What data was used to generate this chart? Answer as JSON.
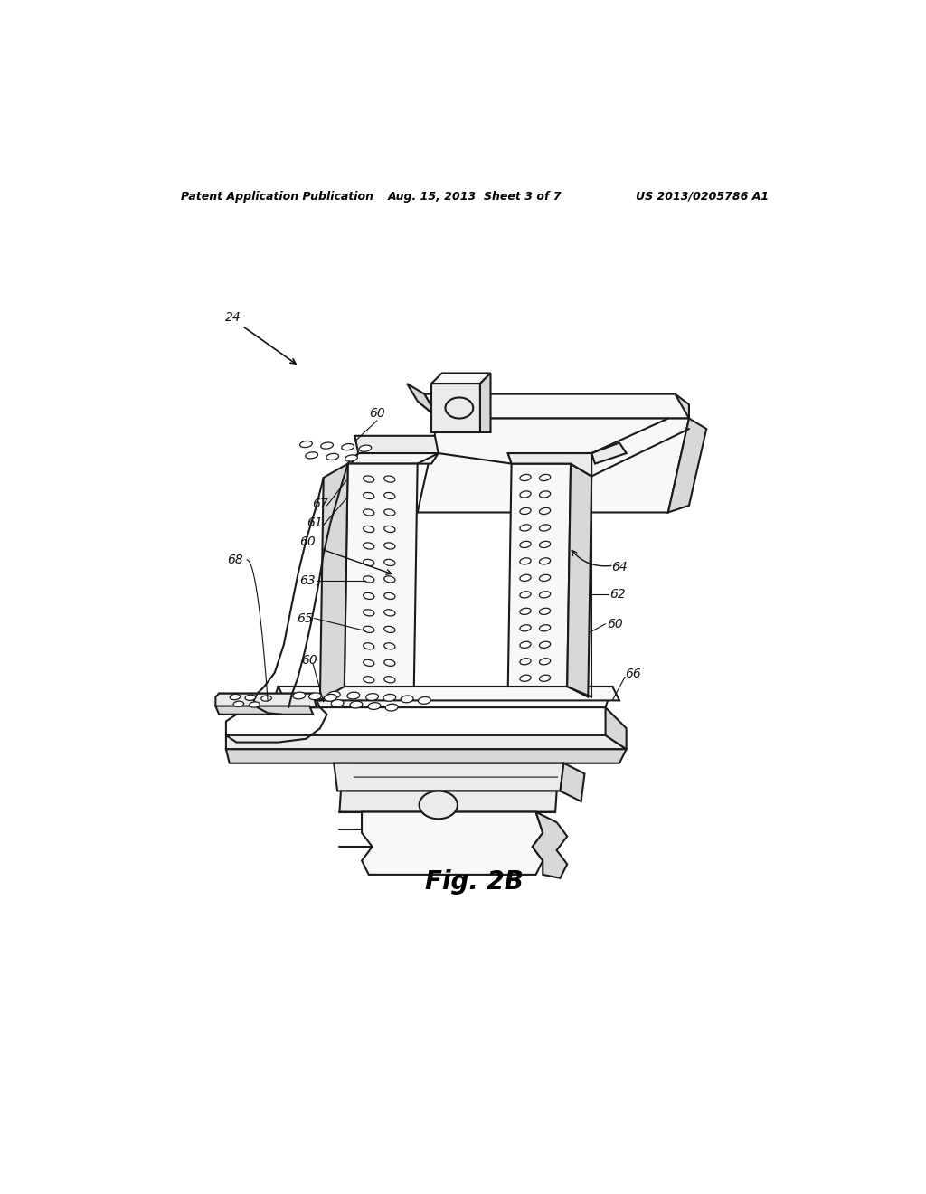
{
  "background_color": "#ffffff",
  "header_left": "Patent Application Publication",
  "header_center": "Aug. 15, 2013  Sheet 3 of 7",
  "header_right": "US 2013/0205786 A1",
  "figure_label": "Fig. 2B",
  "lw_main": 1.5,
  "lw_thin": 0.8,
  "color_edge": "#1a1a1a",
  "color_leader": "#111111",
  "face_light": "#f8f8f8",
  "face_mid": "#ebebeb",
  "face_dark": "#d8d8d8",
  "face_darker": "#c8c8c8",
  "hole_color": "#1a1a1a",
  "hole_lw": 0.9
}
